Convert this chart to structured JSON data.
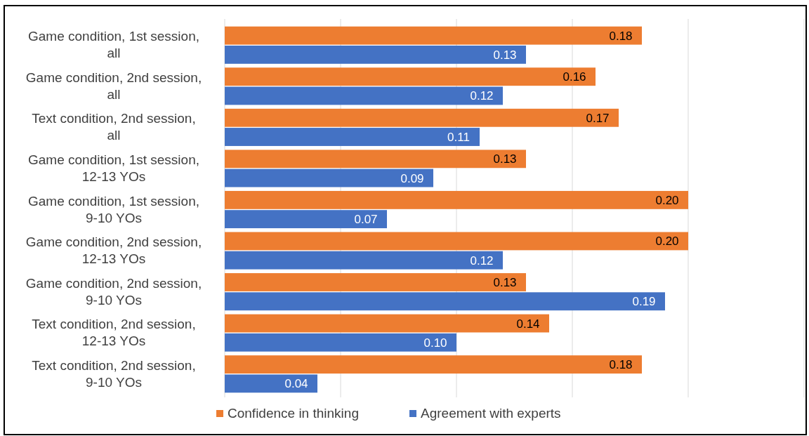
{
  "chart_data": {
    "type": "bar",
    "orientation": "horizontal",
    "categories": [
      "Game condition, 1st session, all",
      "Game condition, 2nd session, all",
      "Text condition, 2nd session, all",
      "Game condition, 1st session, 12-13 YOs",
      "Game condition, 1st session, 9-10 YOs",
      "Game condition, 2nd session, 12-13 YOs",
      "Game condition, 2nd session, 9-10 YOs",
      "Text condition, 2nd session, 12-13 YOs",
      "Text condition, 2nd session, 9-10 YOs"
    ],
    "series": [
      {
        "name": "Confidence in thinking",
        "color": "#ed7d31",
        "values": [
          0.18,
          0.16,
          0.17,
          0.13,
          0.2,
          0.2,
          0.13,
          0.14,
          0.18
        ],
        "value_labels": [
          "0.18",
          "0.16",
          "0.17",
          "0.13",
          "0.20",
          "0.20",
          "0.13",
          "0.14",
          "0.18"
        ]
      },
      {
        "name": "Agreement with experts",
        "color": "#4472c4",
        "values": [
          0.13,
          0.12,
          0.11,
          0.09,
          0.07,
          0.12,
          0.19,
          0.1,
          0.04
        ],
        "value_labels": [
          "0.13",
          "0.12",
          "0.11",
          "0.09",
          "0.07",
          "0.12",
          "0.19",
          "0.10",
          "0.04"
        ]
      }
    ],
    "xlim": [
      0,
      0.25
    ],
    "xticks": [
      {
        "value": 0,
        "label": null
      },
      {
        "value": 0.05,
        "label": null
      },
      {
        "value": 0.1,
        "label": null
      },
      {
        "value": 0.15,
        "label": null
      },
      {
        "value": 0.2,
        "label": null
      },
      {
        "value": 0.25,
        "label": null
      }
    ],
    "tick_labels": "y",
    "grid": "x",
    "legend": "bottom"
  }
}
